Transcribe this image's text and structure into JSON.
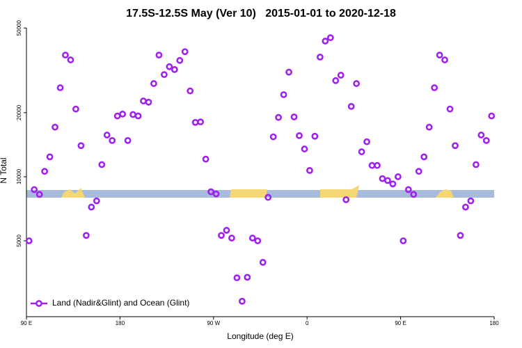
{
  "chart_data": {
    "type": "scatter",
    "title": "17.5S-12.5S May (Ver 10)   2015-01-01 to 2020-12-18",
    "xlabel": "Longitude (deg E)",
    "ylabel": "N Total",
    "log_y": true,
    "legend": "bottom left",
    "xlim": [
      90,
      540
    ],
    "ylim": [
      2200,
      52000
    ],
    "xticks": [
      {
        "value": 90,
        "label": "90 E"
      },
      180,
      {
        "value": 270,
        "label": "90 W"
      },
      {
        "value": 360,
        "label": "0"
      },
      {
        "value": 450,
        "label": "90 E"
      },
      {
        "value": 540,
        "label": "180"
      }
    ],
    "yticks": [
      5000,
      10000,
      20000,
      50000
    ],
    "series": [
      {
        "name": "Land (Nadir&Glint) and Ocean (Glint)",
        "color": "#a020f0",
        "x": [
          92.5,
          97.5,
          102.5,
          107.5,
          112.5,
          117.5,
          122.5,
          127.5,
          132.5,
          137.5,
          142.5,
          147.5,
          152.5,
          157.5,
          162.5,
          167.5,
          172.5,
          177.5,
          182.5,
          187.5,
          192.5,
          197.5,
          202.5,
          207.5,
          212.5,
          217.5,
          222.5,
          227.5,
          232.5,
          237.5,
          242.5,
          247.5,
          252.5,
          257.5,
          262.5,
          267.5,
          272.5,
          277.5,
          282.5,
          287.5,
          292.5,
          297.5,
          302.5,
          307.5,
          312.5,
          317.5,
          322.5,
          327.5,
          332.5,
          337.5,
          342.5,
          347.5,
          352.5,
          357.5,
          362.5,
          367.5,
          372.5,
          377.5,
          382.5,
          387.5,
          392.5,
          397.5,
          402.5,
          407.5,
          412.5,
          417.5,
          422.5,
          427.5,
          432.5,
          437.5,
          442.5,
          447.5,
          452.5,
          457.5,
          462.5,
          467.5,
          472.5,
          477.5,
          482.5,
          487.5,
          492.5,
          497.5,
          502.5,
          507.5,
          512.5,
          517.5,
          522.5,
          527.5,
          532.5,
          537.5
        ],
        "values": [
          5000,
          8700,
          8260,
          10600,
          12400,
          17100,
          26200,
          37300,
          35400,
          20800,
          14000,
          5300,
          7200,
          7700,
          11400,
          15700,
          14800,
          19300,
          19700,
          14800,
          19600,
          19300,
          22700,
          22400,
          27400,
          37300,
          30200,
          32900,
          31900,
          35200,
          38700,
          25300,
          18000,
          18100,
          12100,
          8500,
          8300,
          5300,
          5600,
          5150,
          3350,
          2600,
          3370,
          5150,
          5000,
          3960,
          8000,
          15400,
          19000,
          24300,
          31000,
          19100,
          15600,
          13500,
          10700,
          15500,
          36500,
          43400,
          45000,
          28300,
          30000,
          7800,
          21400,
          27400,
          13100,
          14600,
          11300,
          11300,
          9800,
          9600,
          9250,
          10000,
          5000,
          8700,
          8260,
          10600,
          12400,
          17100,
          26200,
          37300,
          35400,
          20800,
          14000,
          5300,
          7200,
          7700,
          11400,
          15700,
          14800,
          19300
        ]
      }
    ]
  }
}
